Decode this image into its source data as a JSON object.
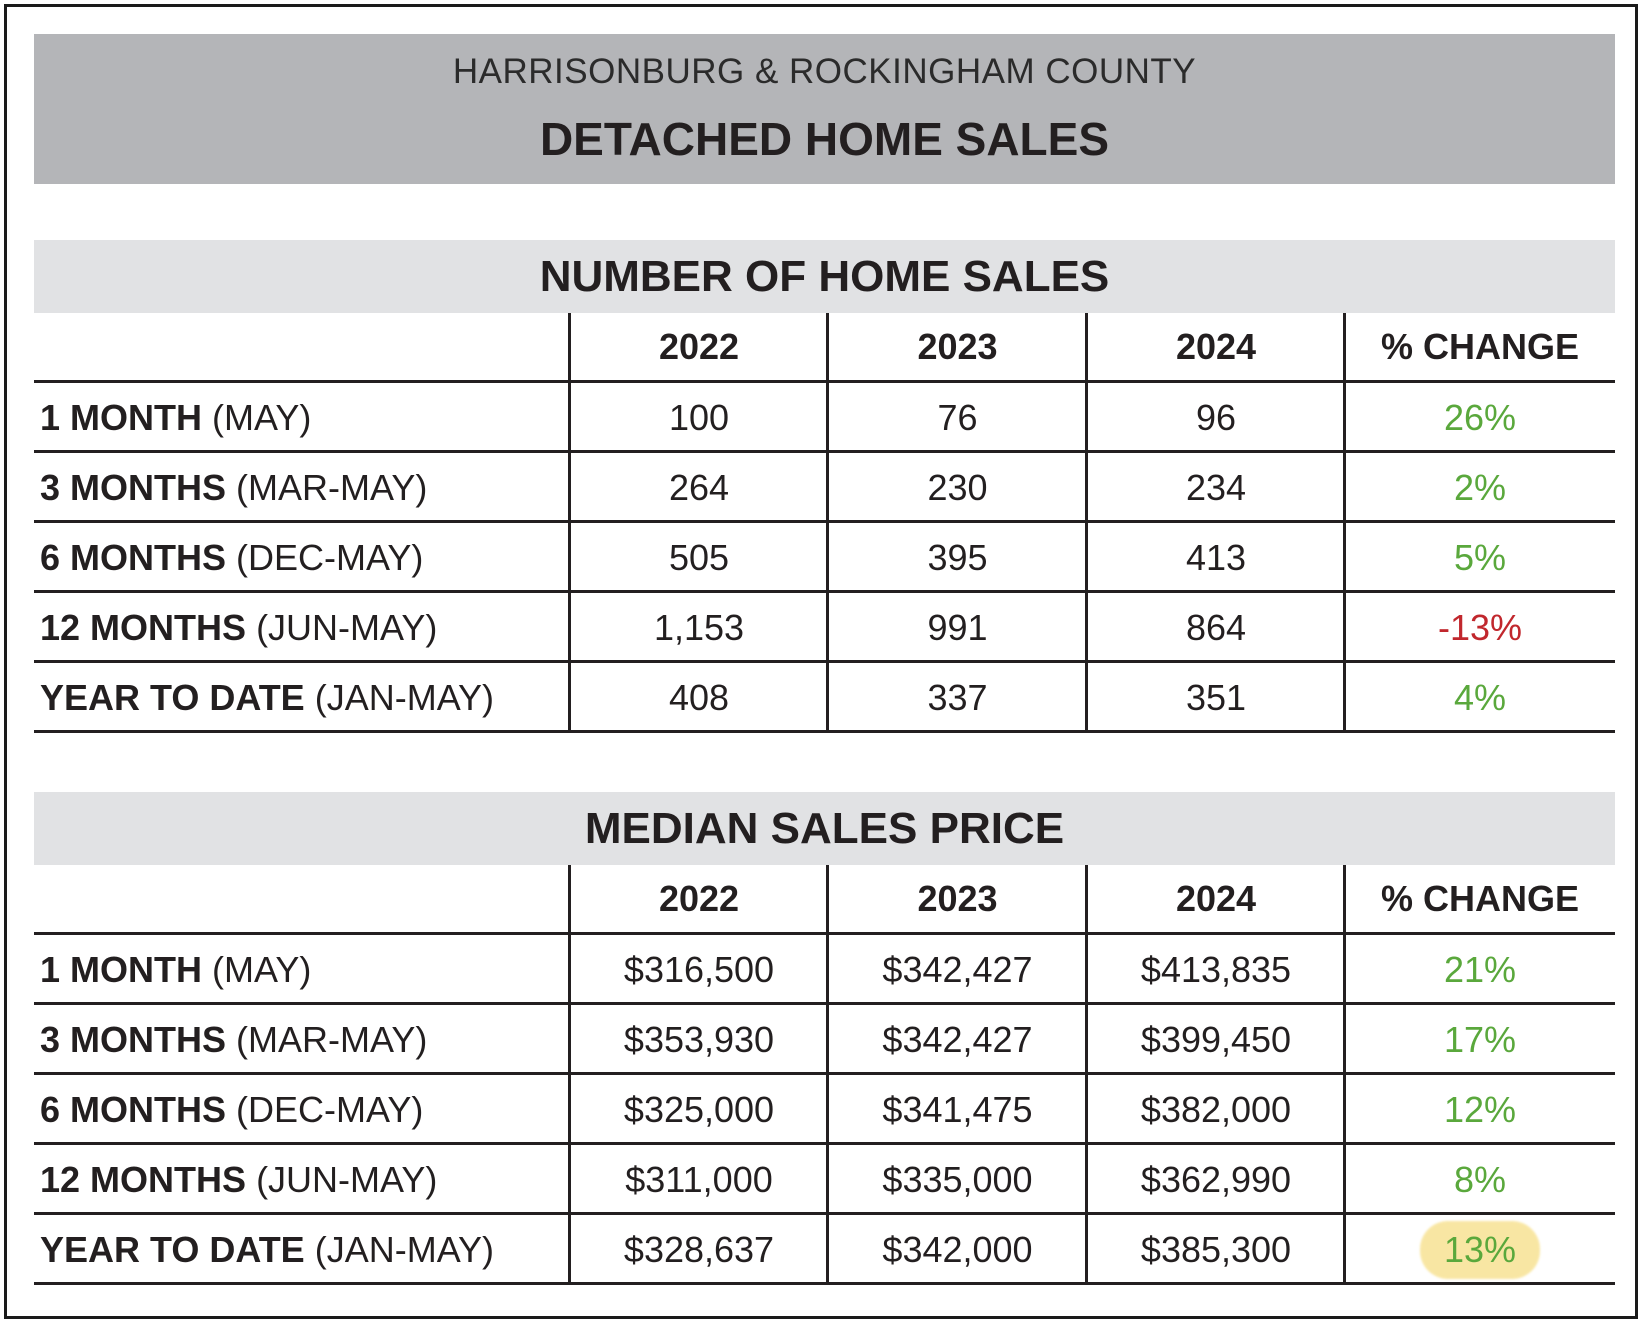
{
  "header": {
    "subtitle": "HARRISONBURG & ROCKINGHAM COUNTY",
    "title": "DETACHED HOME SALES"
  },
  "chart_data": [
    {
      "type": "table",
      "title": "NUMBER OF HOME SALES",
      "columns": [
        "2022",
        "2023",
        "2024",
        "% CHANGE"
      ],
      "rows": [
        {
          "label": "1 MONTH",
          "period": "(MAY)",
          "values": [
            "100",
            "76",
            "96"
          ],
          "change": "26%",
          "change_sign": "pos"
        },
        {
          "label": "3 MONTHS",
          "period": "(MAR-MAY)",
          "values": [
            "264",
            "230",
            "234"
          ],
          "change": "2%",
          "change_sign": "pos"
        },
        {
          "label": "6 MONTHS",
          "period": "(DEC-MAY)",
          "values": [
            "505",
            "395",
            "413"
          ],
          "change": "5%",
          "change_sign": "pos"
        },
        {
          "label": "12 MONTHS",
          "period": "(JUN-MAY)",
          "values": [
            "1,153",
            "991",
            "864"
          ],
          "change": "-13%",
          "change_sign": "neg"
        },
        {
          "label": "YEAR TO DATE",
          "period": "(JAN-MAY)",
          "values": [
            "408",
            "337",
            "351"
          ],
          "change": "4%",
          "change_sign": "pos"
        }
      ]
    },
    {
      "type": "table",
      "title": "MEDIAN SALES PRICE",
      "columns": [
        "2022",
        "2023",
        "2024",
        "% CHANGE"
      ],
      "rows": [
        {
          "label": "1 MONTH",
          "period": "(MAY)",
          "values": [
            "$316,500",
            "$342,427",
            "$413,835"
          ],
          "change": "21%",
          "change_sign": "pos"
        },
        {
          "label": "3 MONTHS",
          "period": "(MAR-MAY)",
          "values": [
            "$353,930",
            "$342,427",
            "$399,450"
          ],
          "change": "17%",
          "change_sign": "pos"
        },
        {
          "label": "6 MONTHS",
          "period": "(DEC-MAY)",
          "values": [
            "$325,000",
            "$341,475",
            "$382,000"
          ],
          "change": "12%",
          "change_sign": "pos"
        },
        {
          "label": "12 MONTHS",
          "period": "(JUN-MAY)",
          "values": [
            "$311,000",
            "$335,000",
            "$362,990"
          ],
          "change": "8%",
          "change_sign": "pos"
        },
        {
          "label": "YEAR TO DATE",
          "period": "(JAN-MAY)",
          "values": [
            "$328,637",
            "$342,000",
            "$385,300"
          ],
          "change": "13%",
          "change_sign": "pos",
          "highlighted": true
        }
      ]
    }
  ],
  "colors": {
    "positive": "#5aa83c",
    "negative": "#c1272d",
    "header_bg": "#b4b5b8",
    "section_bg": "#e1e2e4",
    "highlight": "#f8e49a"
  }
}
